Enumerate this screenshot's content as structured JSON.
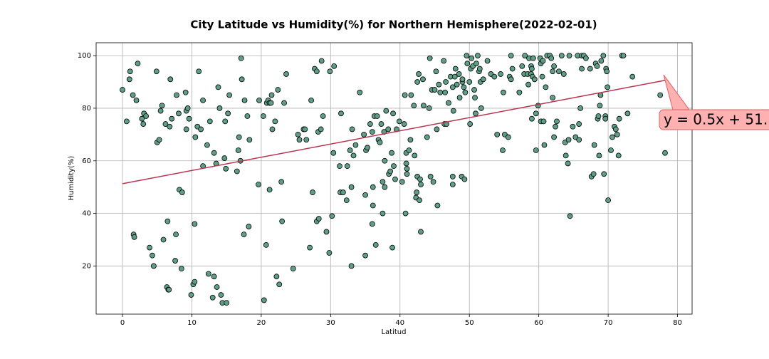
{
  "chart_data": {
    "type": "scatter",
    "title": "City Latitude vs Humidity(%) for Northern Hemisphere(2022-02-01)",
    "x_label": "Latitud",
    "y_label": "Humidity(%)",
    "xlim": [
      -3.8,
      82.1
    ],
    "ylim": [
      1.7,
      104.9
    ],
    "xticks": [
      0,
      10,
      20,
      30,
      40,
      50,
      60,
      70,
      80
    ],
    "yticks": [
      20,
      40,
      60,
      80,
      100
    ],
    "grid": true,
    "color": "#5f9e86",
    "x": [
      0,
      0.6,
      1,
      1.1,
      1.5,
      2,
      2.2,
      1.6,
      1.7,
      2.8,
      3,
      3.1,
      3.4,
      3.9,
      4.3,
      4.5,
      4.9,
      5,
      5.3,
      5.5,
      5.7,
      5.9,
      6.2,
      6.4,
      6.5,
      6.6,
      6.7,
      6.8,
      6.9,
      7.1,
      7.6,
      7.7,
      7.8,
      8.1,
      8.2,
      8.5,
      8.6,
      9.1,
      9.2,
      9.2,
      9.4,
      9.6,
      9.9,
      10.2,
      10.4,
      10.4,
      10.5,
      10.8,
      11,
      11.3,
      11.6,
      11.6,
      12.2,
      12.4,
      12.6,
      13,
      13.2,
      13.2,
      13.5,
      13.6,
      13.8,
      14,
      14.2,
      14.4,
      14.7,
      14.8,
      14.9,
      15,
      15.2,
      15.4,
      16.5,
      16.7,
      16.8,
      17,
      17.1,
      17.2,
      17.5,
      17.6,
      18,
      18.2,
      18.3,
      19.6,
      19.7,
      20.3,
      20.4,
      20.7,
      20.8,
      21,
      21.2,
      21.2,
      21.4,
      21.5,
      21.6,
      22,
      22.2,
      22.4,
      22.6,
      22.9,
      23,
      23.3,
      23.6,
      24.6,
      25.3,
      25.5,
      26.1,
      26.3,
      26.5,
      27,
      27.2,
      27.4,
      27.7,
      28,
      28,
      28.2,
      28.3,
      28.6,
      28.7,
      28.9,
      29.4,
      29.8,
      29.9,
      30.2,
      30.4,
      30.5,
      31.3,
      31.4,
      31.5,
      31.8,
      32.3,
      32.4,
      32.8,
      33,
      33,
      33.1,
      33.3,
      33.6,
      34.2,
      34.8,
      35,
      35,
      35.1,
      35.3,
      35.7,
      36,
      36,
      36.1,
      36.1,
      36.3,
      36.5,
      36.7,
      36.9,
      37.1,
      37.3,
      37.5,
      37.5,
      37.7,
      37.8,
      37.8,
      38,
      38.3,
      38.4,
      38.6,
      38.8,
      38.9,
      39,
      39.1,
      39.3,
      39.5,
      39.9,
      40.3,
      40.6,
      40.7,
      40.8,
      40.9,
      40.9,
      41,
      41,
      41.3,
      41.5,
      41.6,
      42,
      42.1,
      42.3,
      42.4,
      42.5,
      42.5,
      42.7,
      42.8,
      42.9,
      43,
      43,
      43.3,
      43.4,
      43.9,
      44.2,
      44.3,
      44.4,
      44.6,
      44.8,
      45,
      45.2,
      45.3,
      45.4,
      45.6,
      45.8,
      46.3,
      46.4,
      46.5,
      46.6,
      46.7,
      47,
      47.3,
      47.6,
      47.6,
      47.6,
      47.7,
      47.9,
      48,
      48.2,
      48.5,
      48.6,
      48.9,
      49,
      49,
      49.2,
      49.3,
      49.4,
      49.6,
      49.7,
      50,
      50.2,
      50.1,
      50.3,
      50.5,
      50.7,
      50.8,
      50.9,
      51,
      51.2,
      51.4,
      51.5,
      51.6,
      51.7,
      52,
      52.6,
      53.1,
      53.6,
      54,
      54.5,
      54.8,
      54.9,
      55.1,
      55.6,
      55.8,
      56,
      56,
      56.2,
      57.2,
      57.6,
      57.9,
      58,
      58.4,
      58.5,
      58.6,
      58.9,
      58.9,
      59,
      59,
      59.1,
      59.2,
      59.4,
      59.6,
      59.6,
      59.9,
      60.2,
      60.3,
      60.3,
      60.5,
      60.6,
      60.7,
      60.8,
      61,
      61.2,
      61.6,
      61.8,
      62,
      62,
      62.2,
      62.2,
      62.4,
      62.6,
      62.9,
      63.3,
      63.6,
      63.8,
      63.9,
      64.2,
      64.3,
      64.4,
      64.5,
      64.9,
      65.3,
      65.6,
      65.8,
      65.8,
      66.2,
      66.2,
      66.5,
      66.8,
      66,
      67.4,
      67.6,
      67.9,
      68,
      68.2,
      68.4,
      68.5,
      68.6,
      68.7,
      68.8,
      68.9,
      69,
      69.3,
      69.4,
      69.6,
      69.6,
      69.7,
      69.8,
      69.9,
      70,
      70.4,
      70.6,
      70.9,
      71.1,
      71.3,
      71.5,
      71.6,
      72,
      72.2,
      72.8,
      73.5,
      77.5,
      78.2
    ],
    "values": [
      87,
      75,
      91,
      94,
      85,
      83,
      97,
      32,
      31,
      76,
      74,
      78,
      77,
      27,
      24,
      20,
      94,
      67,
      68,
      79,
      81,
      30,
      74,
      12,
      37,
      11,
      11,
      73,
      91,
      76,
      22,
      32,
      85,
      78,
      49,
      19,
      48,
      86,
      72,
      79,
      80,
      76,
      9,
      13,
      14,
      36,
      69,
      73,
      94,
      72,
      58,
      83,
      66,
      17,
      75,
      8,
      16,
      63,
      59,
      12,
      88,
      80,
      9,
      6,
      61,
      75,
      57,
      6,
      78,
      85,
      56,
      64,
      69,
      60,
      99,
      91,
      32,
      83,
      77,
      35,
      68,
      51,
      83,
      77,
      7,
      28,
      82,
      83,
      49,
      82,
      82,
      85,
      72,
      75,
      16,
      87,
      13,
      52,
      37,
      82,
      93,
      19,
      70,
      68,
      72,
      72,
      68,
      27,
      83,
      48,
      95,
      37,
      94,
      71,
      38,
      72,
      98,
      77,
      33,
      25,
      94,
      39,
      63,
      96,
      58,
      48,
      78,
      48,
      45,
      58,
      64,
      50,
      20,
      72,
      62,
      66,
      86,
      70,
      47,
      24,
      64,
      65,
      74,
      36,
      71,
      43,
      50,
      77,
      28,
      77,
      68,
      67,
      74,
      52,
      40,
      71,
      50,
      60,
      79,
      72,
      55,
      56,
      63,
      27,
      78,
      58,
      53,
      72,
      75,
      52,
      74,
      85,
      40,
      59,
      63,
      55,
      57,
      64,
      68,
      85,
      81,
      62,
      46,
      48,
      54,
      90,
      93,
      45,
      53,
      51,
      33,
      91,
      81,
      69,
      80,
      99,
      54,
      87,
      52,
      87,
      94,
      72,
      43,
      89,
      86,
      98,
      74,
      86,
      90,
      74,
      82,
      92,
      54,
      51,
      88,
      79,
      92,
      95,
      89,
      93,
      84,
      54,
      90,
      91,
      88,
      53,
      86,
      100,
      97,
      90,
      95,
      74,
      99,
      96,
      87,
      84,
      78,
      97,
      100,
      94,
      95,
      90,
      80,
      91,
      98,
      93,
      92,
      70,
      93,
      64,
      86,
      70,
      69,
      92,
      100,
      91,
      95,
      86,
      96,
      93,
      100,
      93,
      89,
      99,
      93,
      96,
      95,
      76,
      92,
      99,
      91,
      64,
      78,
      81,
      99,
      75,
      97,
      92,
      98,
      75,
      66,
      88,
      100,
      100,
      99,
      94,
      84,
      96,
      69,
      73,
      75,
      94,
      100,
      93,
      67,
      62,
      59,
      68,
      100,
      39,
      73,
      69,
      100,
      68,
      74,
      100,
      95,
      100,
      99,
      80,
      95,
      54,
      55,
      66,
      97,
      96,
      76,
      77,
      62,
      81,
      85,
      98,
      100,
      55,
      77,
      76,
      95,
      94,
      88,
      45,
      64,
      69,
      73,
      72,
      70,
      62,
      76,
      100,
      100,
      78,
      92,
      85,
      63
    ],
    "regression": {
      "x": [
        0,
        78.2
      ],
      "values": [
        51.3,
        90.6
      ],
      "color": "#b8344f"
    },
    "annotation": {
      "text": "y = 0.5x + 51.",
      "color": "#ffb0b0"
    }
  }
}
